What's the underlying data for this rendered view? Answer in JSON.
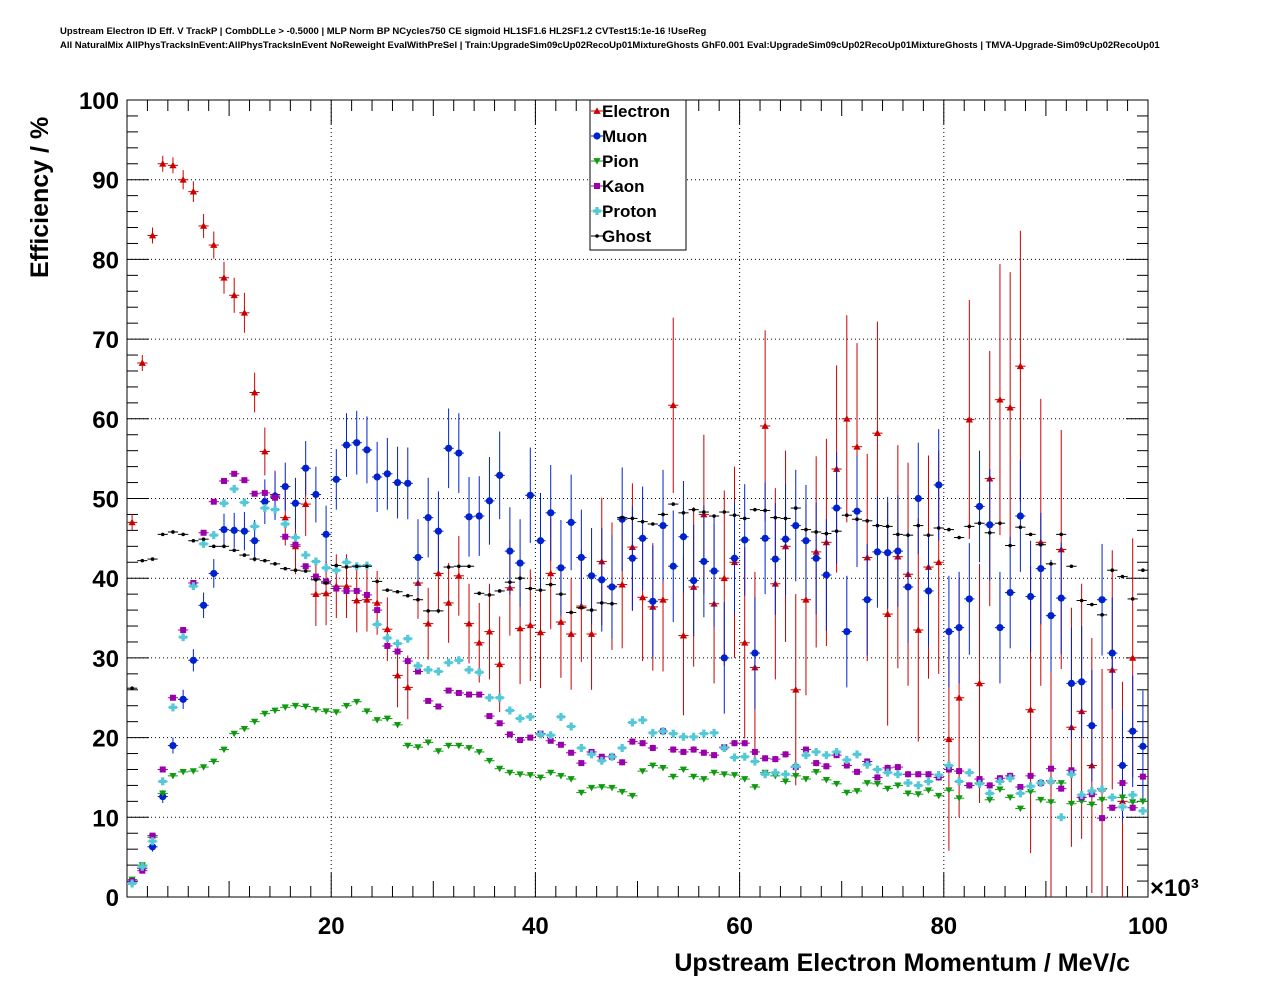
{
  "header": {
    "line1": "Upstream Electron ID Eff. V TrackP | CombDLLe > -0.5000 | MLP Norm BP NCycles750 CE sigmoid HL1SF1.6 HL2SF1.2 CVTest15:1e-16 !UseReg",
    "line2": "All NaturalMix AllPhysTracksInEvent:AllPhysTracksInEvent NoReweight EvalWithPreSel | Train:UpgradeSim09cUp02RecoUp01MixtureGhosts GhF0.001 Eval:UpgradeSim09cUp02RecoUp01MixtureGhosts | TMVA-Upgrade-Sim09cUp02RecoUp01"
  },
  "chart_data": {
    "type": "scatter",
    "xlabel": "Upstream Electron Momentum / MeV/c",
    "ylabel": "Efficiency / %",
    "x_multiplier": "×10³",
    "xlim": [
      0,
      100
    ],
    "ylim": [
      0,
      100
    ],
    "x_ticks": [
      "20",
      "40",
      "60",
      "80",
      "100"
    ],
    "y_ticks": [
      "0",
      "10",
      "20",
      "30",
      "40",
      "50",
      "60",
      "70",
      "80",
      "90",
      "100"
    ],
    "grid": true,
    "legend_position": "top-center",
    "x": [
      0.5,
      1.5,
      2.5,
      3.5,
      4.5,
      5.5,
      6.5,
      7.5,
      8.5,
      9.5,
      10.5,
      11.5,
      12.5,
      13.5,
      14.5,
      15.5,
      16.5,
      17.5,
      18.5,
      19.5,
      20.5,
      21.5,
      22.5,
      23.5,
      24.5,
      25.5,
      26.5,
      27.5,
      28.5,
      29.5,
      30.5,
      31.5,
      32.5,
      33.5,
      34.5,
      35.5,
      36.5,
      37.5,
      38.5,
      39.5,
      40.5,
      41.5,
      42.5,
      43.5,
      44.5,
      45.5,
      46.5,
      47.5,
      48.5,
      49.5,
      50.5,
      51.5,
      52.5,
      53.5,
      54.5,
      55.5,
      56.5,
      57.5,
      58.5,
      59.5,
      60.5,
      61.5,
      62.5,
      63.5,
      64.5,
      65.5,
      66.5,
      67.5,
      68.5,
      69.5,
      70.5,
      71.5,
      72.5,
      73.5,
      74.5,
      75.5,
      76.5,
      77.5,
      78.5,
      79.5,
      80.5,
      81.5,
      82.5,
      83.5,
      84.5,
      85.5,
      86.5,
      87.5,
      88.5,
      89.5,
      90.5,
      91.5,
      92.5,
      93.5,
      94.5,
      95.5,
      96.5,
      97.5,
      98.5,
      99.5
    ],
    "series": [
      {
        "name": "Electron",
        "color": "#cc0000",
        "marker": "triangle-up",
        "values": [
          47,
          67,
          83,
          92,
          91.8,
          90,
          88.5,
          84.2,
          81.8,
          77.7,
          75.5,
          73.3,
          63.3,
          55.9,
          50.5,
          47.6,
          44,
          49.3,
          38,
          38.1,
          39,
          39,
          37.2,
          37.3,
          36.9,
          33.6,
          27.8,
          26.3,
          39.4,
          34.3,
          40.6,
          36.9,
          40.3,
          34.3,
          31.9,
          33.3,
          29.2,
          38.8,
          33.7,
          34.1,
          33.2,
          40.6,
          34.5,
          33,
          36.5,
          33,
          42.1,
          39,
          39.2,
          43.9,
          37.6,
          36.4,
          37.3,
          61.7,
          32.8,
          38.9,
          48,
          36.8,
          40,
          42,
          31.9,
          28.8,
          59.1,
          39.3,
          44,
          26,
          37.3,
          43.3,
          44.5,
          53.7,
          60,
          56.5,
          42.6,
          58.2,
          35.5,
          42.7,
          40.5,
          33.5,
          41.4,
          42,
          19.8,
          25,
          59.9,
          26.8,
          52.5,
          62.4,
          61.4,
          66.6,
          23.5,
          44.5,
          14.6,
          43.6,
          21.3,
          23.3,
          16.5,
          13.6,
          28.5,
          12,
          30
        ],
        "errors": [
          1,
          1,
          1,
          1,
          1,
          1.2,
          1.3,
          1.5,
          1.7,
          2,
          2.2,
          2.5,
          2.5,
          3,
          3,
          3.5,
          3.5,
          4,
          4,
          4,
          4,
          4,
          4,
          4,
          4,
          4,
          4,
          4,
          4.5,
          4.5,
          5,
          5,
          5,
          5,
          5,
          6,
          6,
          6,
          7,
          7,
          7,
          7,
          7,
          7,
          7,
          7,
          8,
          8,
          8,
          8,
          8,
          8,
          9,
          11,
          10,
          10,
          10,
          10,
          11,
          12,
          12,
          12,
          12,
          12,
          12,
          12,
          12,
          12,
          13,
          13,
          13,
          13,
          13,
          14,
          14,
          14,
          14,
          14,
          14,
          14,
          14,
          15,
          15,
          15,
          16,
          17,
          17,
          17,
          18,
          18,
          15,
          15,
          15,
          16,
          16,
          15,
          15,
          15,
          15
        ]
      },
      {
        "name": "Muon",
        "color": "#0022cc",
        "marker": "circle",
        "values": [
          1.9,
          3.6,
          6.3,
          12.6,
          19,
          24.8,
          29.7,
          36.6,
          40.6,
          46.1,
          46,
          45.9,
          44.7,
          49.6,
          50.3,
          51.5,
          49.4,
          53.8,
          50.5,
          45.5,
          52.4,
          56.7,
          57,
          56.1,
          52.7,
          53.1,
          52,
          51.9,
          42.6,
          47.6,
          45.9,
          56.3,
          55.7,
          47.7,
          47.8,
          49.7,
          52.9,
          43.4,
          41.9,
          50.4,
          44.7,
          48.2,
          41.3,
          47,
          42.6,
          40.3,
          39.8,
          38.9,
          47.4,
          42.5,
          45,
          37.1,
          46.6,
          41.5,
          45.2,
          39.7,
          42.1,
          40.9,
          30,
          42.5,
          44.8,
          30.6,
          45,
          42.4,
          44.9,
          46.6,
          44.7,
          42.5,
          40.4,
          48.8,
          33.3,
          48.4,
          37.3,
          43.3,
          43.2,
          43.4,
          38.9,
          50,
          38.4,
          51.7,
          33.3,
          33.8,
          37.4,
          49,
          46.7,
          33.8,
          38.2,
          47.8,
          37.7,
          41.2,
          35.3,
          37.5,
          26.8,
          27,
          21.5,
          37.3,
          30.6,
          16.5,
          20.8,
          18.9
        ],
        "errors": [
          0.3,
          0.5,
          0.6,
          0.8,
          1,
          1.2,
          1.4,
          1.6,
          1.8,
          2,
          2.2,
          2.4,
          2.6,
          2.8,
          3,
          3,
          3.2,
          3.4,
          3.5,
          3.6,
          3.8,
          4,
          4,
          4.2,
          4.4,
          4.5,
          4.5,
          4.5,
          4.8,
          5,
          5,
          5,
          5,
          5,
          5,
          5.5,
          5.5,
          5.5,
          5.5,
          6,
          6,
          6,
          6,
          6,
          6,
          6,
          6.5,
          6.5,
          6.5,
          6.5,
          6.5,
          7,
          7,
          7,
          7,
          7,
          7,
          7,
          7,
          7,
          7,
          7,
          7,
          7,
          7,
          7,
          7,
          7,
          7,
          7,
          7,
          7,
          7,
          7,
          7,
          7,
          7,
          7,
          7,
          7,
          7,
          7,
          7,
          7,
          7,
          7,
          7,
          7,
          7,
          7,
          7,
          7,
          7,
          7,
          7,
          7,
          7,
          7,
          7,
          7
        ]
      },
      {
        "name": "Pion",
        "color": "#119911",
        "marker": "triangle-down",
        "values": [
          2.2,
          4,
          7.5,
          13,
          15.2,
          15.7,
          15.8,
          16.3,
          17,
          18.5,
          20.5,
          21.1,
          22,
          23,
          23.4,
          23.8,
          24,
          23.9,
          23.5,
          23.3,
          23.2,
          24,
          24.5,
          23.3,
          22.2,
          22.4,
          21.6,
          19,
          18.8,
          19.4,
          18.3,
          19,
          19,
          18.7,
          18.2,
          17.1,
          16.1,
          15.6,
          15.4,
          15.3,
          15,
          15.6,
          15.2,
          14.8,
          13.1,
          13.7,
          13.8,
          13.7,
          13.2,
          12.7,
          15.8,
          16.5,
          16.2,
          15.1,
          16,
          15.1,
          14.8,
          15.6,
          15.4,
          15.3,
          14.8,
          13.8,
          15.6,
          15.2,
          14.5,
          15.2,
          14.8,
          15.7,
          14.7,
          14.2,
          13.1,
          13.3,
          14.3,
          14.2,
          13.6,
          14,
          13,
          12.9,
          13.4,
          12.7,
          13.4,
          12.4,
          14,
          14.3,
          12.2,
          13.5,
          12.5,
          11.1,
          13.2,
          12.2,
          11.9,
          14.3,
          11.7,
          12,
          11.6,
          12.2,
          11.2,
          12.5,
          11.9,
          12
        ],
        "errors": [
          0.2,
          0.2,
          0.2,
          0.2,
          0.2,
          0.2,
          0.2,
          0.2,
          0.2,
          0.2,
          0.2,
          0.2,
          0.2,
          0.2,
          0.2,
          0.2,
          0.2,
          0.2,
          0.2,
          0.2,
          0.2,
          0.2,
          0.2,
          0.2,
          0.2,
          0.2,
          0.2,
          0.2,
          0.2,
          0.2,
          0.2,
          0.2,
          0.2,
          0.2,
          0.2,
          0.2,
          0.2,
          0.2,
          0.2,
          0.2,
          0.2,
          0.2,
          0.2,
          0.2,
          0.2,
          0.2,
          0.2,
          0.2,
          0.3,
          0.3,
          0.3,
          0.3,
          0.3,
          0.3,
          0.3,
          0.3,
          0.3,
          0.3,
          0.3,
          0.3,
          0.3,
          0.3,
          0.3,
          0.3,
          0.3,
          0.3,
          0.3,
          0.3,
          0.3,
          0.3,
          0.3,
          0.3,
          0.3,
          0.3,
          0.3,
          0.3,
          0.3,
          0.3,
          0.3,
          0.3,
          0.3,
          0.3,
          0.3,
          0.3,
          0.3,
          0.3,
          0.3,
          0.3,
          0.3,
          0.3,
          0.3,
          0.3,
          0.3,
          0.3,
          0.3,
          0.3,
          0.3,
          0.3,
          0.3,
          0.3
        ]
      },
      {
        "name": "Kaon",
        "color": "#9900aa",
        "marker": "square",
        "values": [
          2,
          3.3,
          7.7,
          16,
          25,
          33.5,
          39.4,
          45.7,
          49.6,
          52.2,
          53.1,
          52.3,
          50.6,
          50.7,
          50.1,
          45.2,
          44.2,
          41.5,
          40.2,
          39.6,
          38.7,
          38.4,
          38.4,
          37.9,
          36,
          31.5,
          30.8,
          29.6,
          28.3,
          24.6,
          23.9,
          25.9,
          25.6,
          25.4,
          25.4,
          22.7,
          21.8,
          20.4,
          19.7,
          20,
          20.5,
          19.6,
          19.1,
          18.1,
          16.8,
          18.2,
          17.6,
          17.6,
          16.9,
          19.5,
          19.3,
          18.7,
          20.8,
          18.5,
          18.2,
          18.5,
          18.1,
          17.8,
          18.8,
          19.3,
          19.3,
          18.2,
          17.4,
          17.3,
          17.9,
          16.3,
          18.5,
          16.8,
          16.4,
          17.8,
          16.5,
          15.7,
          17,
          15,
          16.2,
          16.3,
          15.4,
          15.4,
          15.4,
          15,
          16,
          15.8,
          14,
          14.8,
          14,
          14.9,
          15.2,
          13.8,
          15.2,
          14.3,
          16.1,
          13.6,
          15.9,
          12.5,
          12.9,
          9.9,
          11.2,
          14.3,
          11.2,
          15.1
        ],
        "errors": [
          0.3,
          0.3,
          0.3,
          0.3,
          0.3,
          0.3,
          0.3,
          0.3,
          0.3,
          0.3,
          0.3,
          0.3,
          0.3,
          0.3,
          0.3,
          0.3,
          0.3,
          0.3,
          0.3,
          0.3,
          0.3,
          0.3,
          0.3,
          0.3,
          0.3,
          0.3,
          0.3,
          0.3,
          0.3,
          0.3,
          0.3,
          0.3,
          0.3,
          0.3,
          0.3,
          0.3,
          0.3,
          0.3,
          0.3,
          0.3,
          0.3,
          0.3,
          0.3,
          0.3,
          0.3,
          0.3,
          0.3,
          0.3,
          0.4,
          0.4,
          0.4,
          0.4,
          0.4,
          0.4,
          0.4,
          0.4,
          0.4,
          0.4,
          0.4,
          0.4,
          0.4,
          0.4,
          0.4,
          0.4,
          0.4,
          0.4,
          0.4,
          0.4,
          0.4,
          0.4,
          0.4,
          0.4,
          0.4,
          0.4,
          0.4,
          0.4,
          0.4,
          0.4,
          0.4,
          0.4,
          0.4,
          0.4,
          0.4,
          0.4,
          0.4,
          0.4,
          0.4,
          0.4,
          0.4,
          0.4,
          0.4,
          0.4,
          0.4,
          0.4,
          0.4,
          0.4,
          0.4,
          0.4,
          0.4,
          0.4
        ]
      },
      {
        "name": "Proton",
        "color": "#55c8d8",
        "marker": "cross",
        "values": [
          1.7,
          3.8,
          7,
          14.5,
          23.8,
          32.6,
          39,
          44.3,
          45.4,
          49.4,
          51.2,
          49.5,
          46.5,
          48.8,
          48.6,
          46.8,
          45.1,
          42.9,
          42.1,
          41.3,
          41,
          42,
          41.5,
          41.6,
          34.2,
          32.5,
          31.8,
          32.4,
          29,
          28.5,
          28.3,
          29.4,
          29.7,
          28.5,
          28.2,
          25,
          25,
          23.4,
          22.4,
          22.6,
          20.4,
          20.3,
          22.6,
          21.4,
          18.7,
          17.9,
          17.1,
          17.6,
          18.7,
          21.9,
          22.2,
          20.6,
          20.8,
          20.5,
          20.1,
          20.1,
          20.5,
          20.6,
          18.7,
          17.5,
          17.6,
          17,
          15.4,
          15.6,
          15.4,
          16.4,
          17.8,
          18.2,
          17.8,
          18.2,
          17.2,
          17.9,
          16.6,
          16,
          15.6,
          15.4,
          14.3,
          14,
          14.5,
          15.3,
          16.5,
          14.5,
          15.6,
          14.2,
          13,
          14.5,
          14.9,
          13,
          13.9,
          14.3,
          14.5,
          10,
          15.4,
          12.8,
          13.3,
          13.5,
          12.5,
          11.3,
          12.8,
          10.8
        ],
        "errors": [
          0.3,
          0.3,
          0.3,
          0.3,
          0.3,
          0.3,
          0.3,
          0.3,
          0.3,
          0.3,
          0.3,
          0.3,
          0.3,
          0.3,
          0.3,
          0.3,
          0.3,
          0.3,
          0.3,
          0.3,
          0.3,
          0.3,
          0.3,
          0.3,
          0.3,
          0.3,
          0.3,
          0.3,
          0.3,
          0.3,
          0.3,
          0.3,
          0.3,
          0.3,
          0.3,
          0.3,
          0.3,
          0.3,
          0.3,
          0.3,
          0.3,
          0.3,
          0.3,
          0.3,
          0.3,
          0.3,
          0.3,
          0.3,
          0.4,
          0.4,
          0.4,
          0.4,
          0.4,
          0.4,
          0.4,
          0.4,
          0.4,
          0.4,
          0.4,
          0.4,
          0.4,
          0.4,
          0.4,
          0.4,
          0.4,
          0.4,
          0.4,
          0.4,
          0.4,
          0.4,
          0.4,
          0.4,
          0.4,
          0.4,
          0.4,
          0.4,
          0.4,
          0.4,
          0.4,
          0.4,
          0.4,
          0.4,
          0.4,
          0.4,
          0.4,
          0.4,
          0.4,
          0.4,
          0.4,
          0.4,
          0.4,
          0.4,
          0.4,
          0.4,
          0.4,
          0.4,
          0.4,
          0.4,
          0.4,
          0.4
        ]
      },
      {
        "name": "Ghost",
        "color": "#000000",
        "marker": "dot",
        "values": [
          26.2,
          42.2,
          42.4,
          45.5,
          45.8,
          45.5,
          44.7,
          44.9,
          44,
          44,
          43.5,
          42.9,
          42.4,
          42.2,
          41.8,
          41.2,
          41,
          40.9,
          39.8,
          39.4,
          41.6,
          41.4,
          41.5,
          41.5,
          39.6,
          38.5,
          38.3,
          37.8,
          37.3,
          35.9,
          35.9,
          41.4,
          41.5,
          41.5,
          38.1,
          37.9,
          38.4,
          39.5,
          40,
          38.7,
          38.5,
          39.2,
          38,
          35.7,
          36.3,
          36,
          36.9,
          36.8,
          47.6,
          47.5,
          47.1,
          46.8,
          48,
          49.3,
          48.2,
          48.6,
          48.3,
          47.8,
          48.3,
          47.9,
          47.5,
          48.6,
          48.5,
          47.6,
          47.5,
          48.8,
          46.1,
          45.8,
          45.6,
          45.9,
          47.9,
          47.4,
          47.2,
          46.6,
          46.5,
          45.5,
          45.4,
          46.6,
          45.4,
          46.3,
          46.1,
          45.1,
          46.5,
          46.9,
          45.7,
          46.9,
          44.1,
          46.4,
          45.5,
          44.2,
          41.8,
          45.5,
          41.5,
          37.2,
          36.7,
          35.4,
          41,
          40.2,
          37.4,
          41
        ]
      }
    ]
  }
}
